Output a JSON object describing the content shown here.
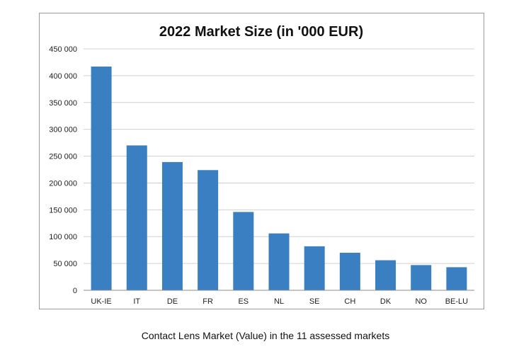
{
  "chart_data": {
    "type": "bar",
    "title": "2022 Market Size (in '000 EUR)",
    "xlabel": "",
    "ylabel": "",
    "categories": [
      "UK-IE",
      "IT",
      "DE",
      "FR",
      "ES",
      "NL",
      "SE",
      "CH",
      "DK",
      "NO",
      "BE-LU"
    ],
    "values": [
      417000,
      270000,
      239000,
      224000,
      146000,
      106000,
      82000,
      70000,
      56000,
      47000,
      43000
    ],
    "ylim": [
      0,
      450000
    ],
    "yticks": [
      0,
      50000,
      100000,
      150000,
      200000,
      250000,
      300000,
      350000,
      400000,
      450000
    ],
    "ytick_labels": [
      "0",
      "50 000",
      "100 000",
      "150 000",
      "200 000",
      "250 000",
      "300 000",
      "350 000",
      "400 000",
      "450 000"
    ],
    "grid": true,
    "legend": "none",
    "bar_color": "#3a7fc1"
  },
  "caption": "Contact Lens Market (Value) in the 11 assessed markets"
}
